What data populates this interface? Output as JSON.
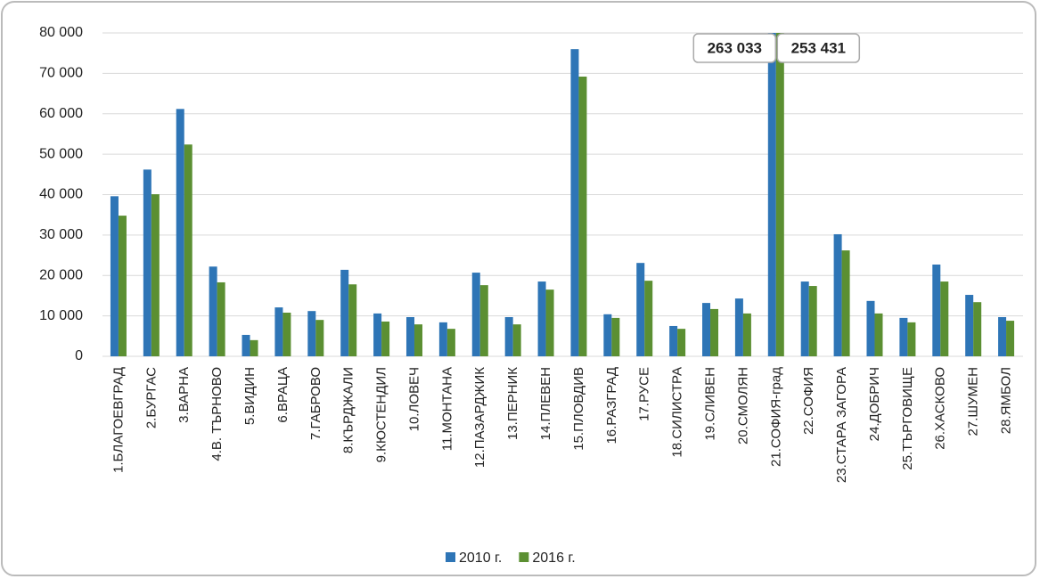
{
  "chart_data": {
    "type": "bar",
    "categories": [
      "1.БЛАГОЕВГРАД",
      "2.БУРГАС",
      "3.ВАРНА",
      "4.В. ТЪРНОВО",
      "5.ВИДИН",
      "6.ВРАЦА",
      "7.ГАБРОВО",
      "8.КЪРДЖАЛИ",
      "9.КЮСТЕНДИЛ",
      "10.ЛОВЕЧ",
      "11.МОНТАНА",
      "12.ПАЗАРДЖИК",
      "13.ПЕРНИК",
      "14.ПЛЕВЕН",
      "15.ПЛОВДИВ",
      "16.РАЗГРАД",
      "17.РУСЕ",
      "18.СИЛИСТРА",
      "19.СЛИВЕН",
      "20.СМОЛЯН",
      "21.СОФИЯ-град",
      "22.СОФИЯ",
      "23.СТАРА  ЗАГОРА",
      "24.ДОБРИЧ",
      "25.ТЪРГОВИЩЕ",
      "26.ХАСКОВО",
      "27.ШУМЕН",
      "28.ЯМБОЛ"
    ],
    "series": [
      {
        "name": "2010 г.",
        "color": "#2e75b6",
        "values": [
          39600,
          46200,
          61200,
          22200,
          5300,
          12100,
          11200,
          21400,
          10600,
          9700,
          8400,
          20700,
          9700,
          18500,
          76000,
          10400,
          23100,
          7500,
          13200,
          14300,
          263033,
          18500,
          30200,
          13700,
          9500,
          22700,
          15200,
          9700
        ],
        "value_labels": [
          null,
          null,
          null,
          null,
          null,
          null,
          null,
          null,
          null,
          null,
          null,
          null,
          null,
          null,
          null,
          null,
          null,
          null,
          null,
          null,
          "263 033",
          null,
          null,
          null,
          null,
          null,
          null,
          null
        ]
      },
      {
        "name": "2016 г.",
        "color": "#5b8f32",
        "values": [
          34800,
          40100,
          52400,
          18300,
          4000,
          10800,
          9000,
          17800,
          8600,
          7900,
          6800,
          17600,
          7900,
          16500,
          69200,
          9500,
          18700,
          6800,
          11700,
          10600,
          253431,
          17400,
          26200,
          10600,
          8400,
          18500,
          13400,
          8800
        ],
        "value_labels": [
          null,
          null,
          null,
          null,
          null,
          null,
          null,
          null,
          null,
          null,
          null,
          null,
          null,
          null,
          null,
          null,
          null,
          null,
          null,
          null,
          "253 431",
          null,
          null,
          null,
          null,
          null,
          null,
          null
        ]
      }
    ],
    "ylim": [
      0,
      80000
    ],
    "yticks": [
      0,
      {
        "value": 10000,
        "label": "10 000"
      },
      {
        "value": 20000,
        "label": "20 000"
      },
      {
        "value": 30000,
        "label": "30 000"
      },
      {
        "value": 40000,
        "label": "40 000"
      },
      {
        "value": 50000,
        "label": "50 000"
      },
      {
        "value": 60000,
        "label": "60 000"
      },
      {
        "value": 70000,
        "label": "70 000"
      },
      {
        "value": 80000,
        "label": "80 000"
      }
    ],
    "grid": true,
    "legend": "bottom"
  }
}
